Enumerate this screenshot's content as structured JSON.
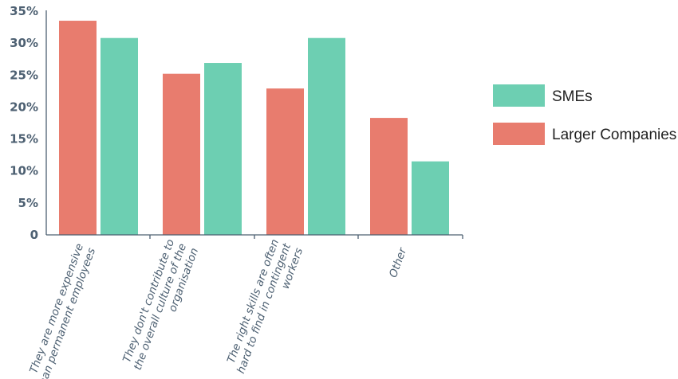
{
  "chart_data": {
    "type": "bar",
    "categories": [
      [
        "They are more expensive",
        "than permanent employees"
      ],
      [
        "They don't contribute to",
        "the overall culture of the",
        "organisation"
      ],
      [
        "The right skills are often",
        "hard to find in contingent",
        "workers"
      ],
      [
        "Other"
      ]
    ],
    "series": [
      {
        "name": "Larger Companies",
        "values": [
          33.5,
          25.2,
          22.9,
          18.3
        ],
        "color": "#e87c6e"
      },
      {
        "name": "SMEs",
        "values": [
          30.8,
          26.9,
          30.8,
          11.5
        ],
        "color": "#6dcfb2"
      }
    ],
    "ylim": [
      0,
      35
    ],
    "yticks": [
      "0",
      "5%",
      "10%",
      "15%",
      "20%",
      "25%",
      "30%",
      "35%"
    ],
    "legend_order": [
      "SMEs",
      "Larger Companies"
    ],
    "legend_position": "right",
    "grid": false,
    "title": "",
    "xlabel": "",
    "ylabel": ""
  }
}
